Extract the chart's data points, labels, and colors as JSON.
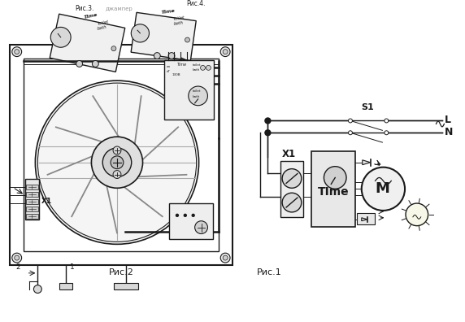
{
  "bg_color": "#ffffff",
  "fig_width": 5.72,
  "fig_height": 3.96,
  "dpi": 100,
  "title_left": "Рис.2",
  "title_right": "Рис.1",
  "label_S1": "S1",
  "label_L": "L",
  "label_N": "N",
  "label_X1_left": "X1",
  "label_X1_right": "X1",
  "label_Time": "TIme",
  "label_M": "M",
  "label_2": "2",
  "label_1": "1",
  "label_ris3": "Рис.3.",
  "label_ris4": "Рис.4.",
  "label_djumper": "джампер"
}
